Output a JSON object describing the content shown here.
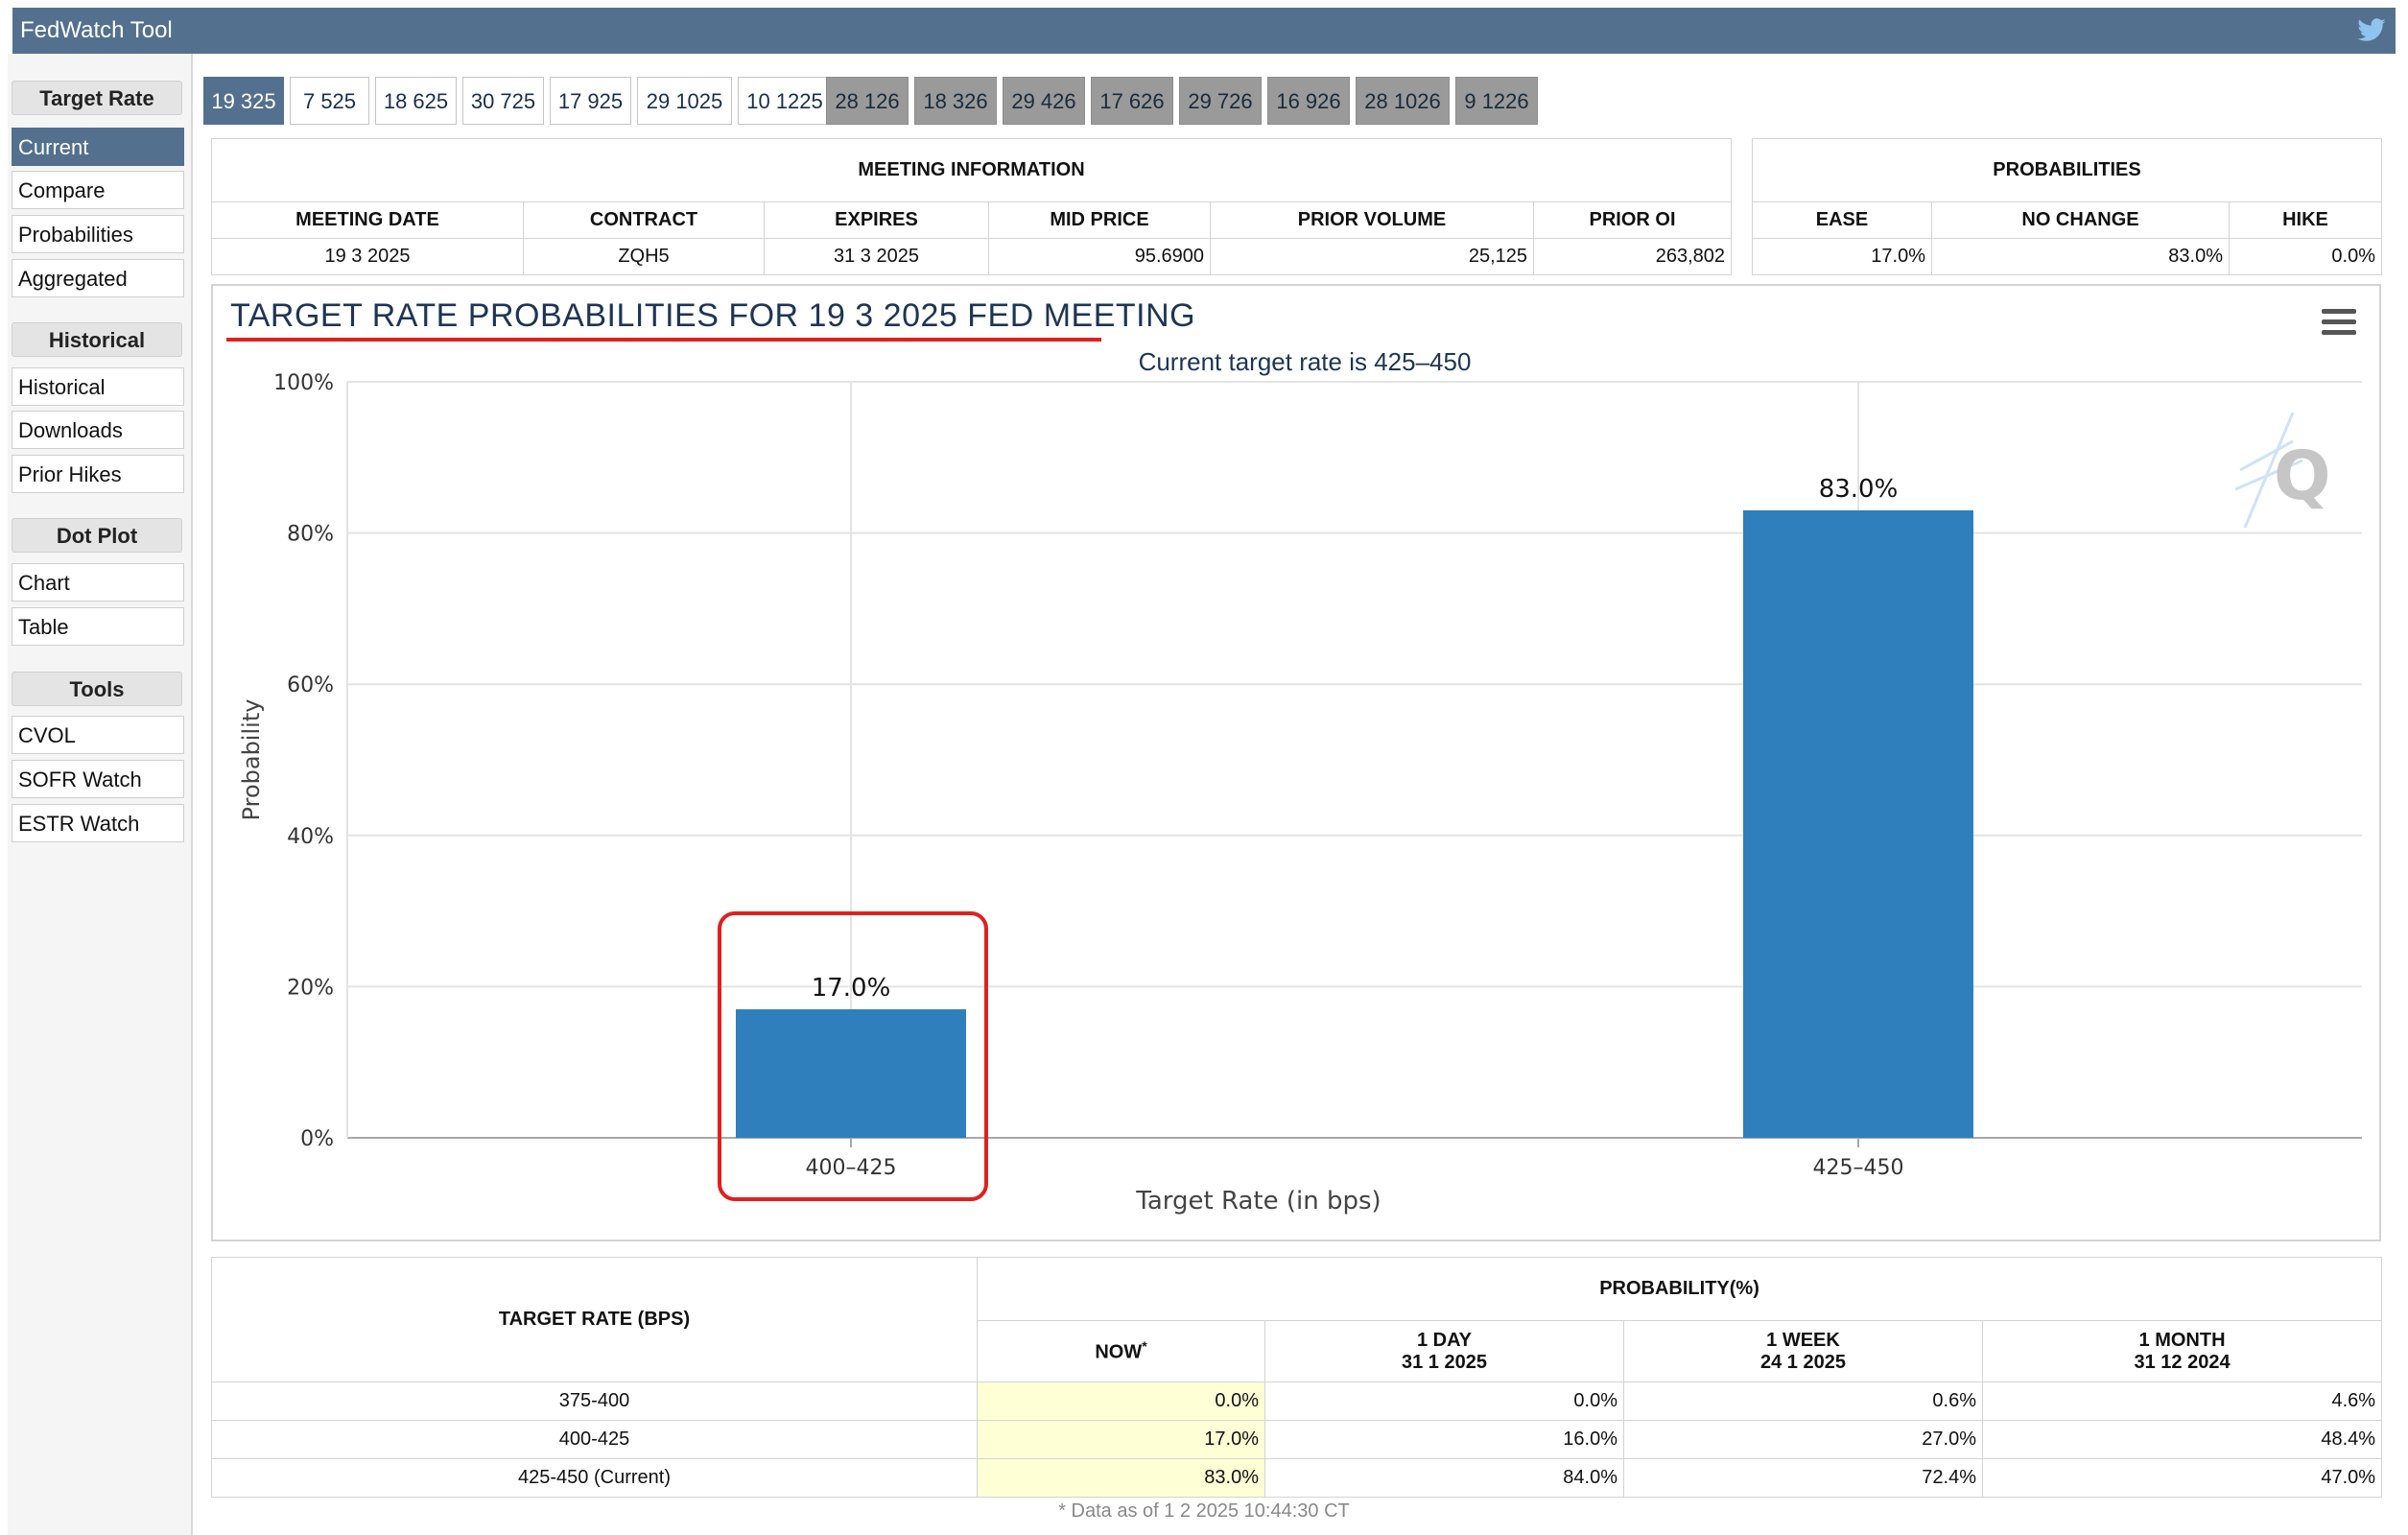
{
  "app": {
    "title": "FedWatch Tool",
    "twitter_icon": "twitter-bird-icon"
  },
  "sidebar": {
    "sections": [
      {
        "heading": "Target Rate",
        "items": [
          "Current",
          "Compare",
          "Probabilities",
          "Aggregated"
        ]
      },
      {
        "heading": "Historical",
        "items": [
          "Historical",
          "Downloads",
          "Prior Hikes"
        ]
      },
      {
        "heading": "Dot Plot",
        "items": [
          "Chart",
          "Table"
        ]
      },
      {
        "heading": "Tools",
        "items": [
          "CVOL",
          "SOFR Watch",
          "ESTR Watch"
        ]
      }
    ],
    "active_item": "Current"
  },
  "tabs": [
    "19 325",
    "7 525",
    "18 625",
    "30 725",
    "17 925",
    "29 1025",
    "10 1225",
    "28 126",
    "18 326",
    "29 426",
    "17 626",
    "29 726",
    "16 926",
    "28 1026",
    "9 1226"
  ],
  "meeting_info": {
    "title": "MEETING INFORMATION",
    "headers": [
      "MEETING DATE",
      "CONTRACT",
      "EXPIRES",
      "MID PRICE",
      "PRIOR VOLUME",
      "PRIOR OI"
    ],
    "values": [
      "19 3 2025",
      "ZQH5",
      "31 3 2025",
      "95.6900",
      "25,125",
      "263,802"
    ]
  },
  "probabilities": {
    "title": "PROBABILITIES",
    "headers": [
      "EASE",
      "NO CHANGE",
      "HIKE"
    ],
    "values": [
      "17.0%",
      "83.0%",
      "0.0%"
    ]
  },
  "chart": {
    "title": "TARGET RATE PROBABILITIES FOR 19 3 2025 FED MEETING",
    "subtitle": "Current target rate is 425–450",
    "menu_icon": "hamburger-menu-icon"
  },
  "chart_data": {
    "type": "bar",
    "categories": [
      "400–425",
      "425–450"
    ],
    "values": [
      17.0,
      83.0
    ],
    "data_labels": [
      "17.0%",
      "83.0%"
    ],
    "xlabel": "Target Rate (in bps)",
    "ylabel": "Probability",
    "ylim": [
      0,
      100
    ],
    "yticks": [
      "0%",
      "20%",
      "40%",
      "60%",
      "80%",
      "100%"
    ],
    "grid": true,
    "bar_color": "#2e7fbc"
  },
  "prob_table": {
    "col_target": "TARGET RATE (BPS)",
    "group_header": "PROBABILITY(%)",
    "now": "NOW",
    "now_mark": "*",
    "columns": [
      {
        "label": "1 DAY",
        "date": "31 1 2025"
      },
      {
        "label": "1 WEEK",
        "date": "24 1 2025"
      },
      {
        "label": "1 MONTH",
        "date": "31 12 2024"
      }
    ],
    "rows": [
      {
        "rate": "375-400",
        "now": "0.0%",
        "d1": "0.0%",
        "w1": "0.6%",
        "m1": "4.6%"
      },
      {
        "rate": "400-425",
        "now": "17.0%",
        "d1": "16.0%",
        "w1": "27.0%",
        "m1": "48.4%"
      },
      {
        "rate": "425-450 (Current)",
        "now": "83.0%",
        "d1": "84.0%",
        "w1": "72.4%",
        "m1": "47.0%"
      }
    ],
    "footnote": "* Data as of 1 2 2025 10:44:30 CT"
  }
}
